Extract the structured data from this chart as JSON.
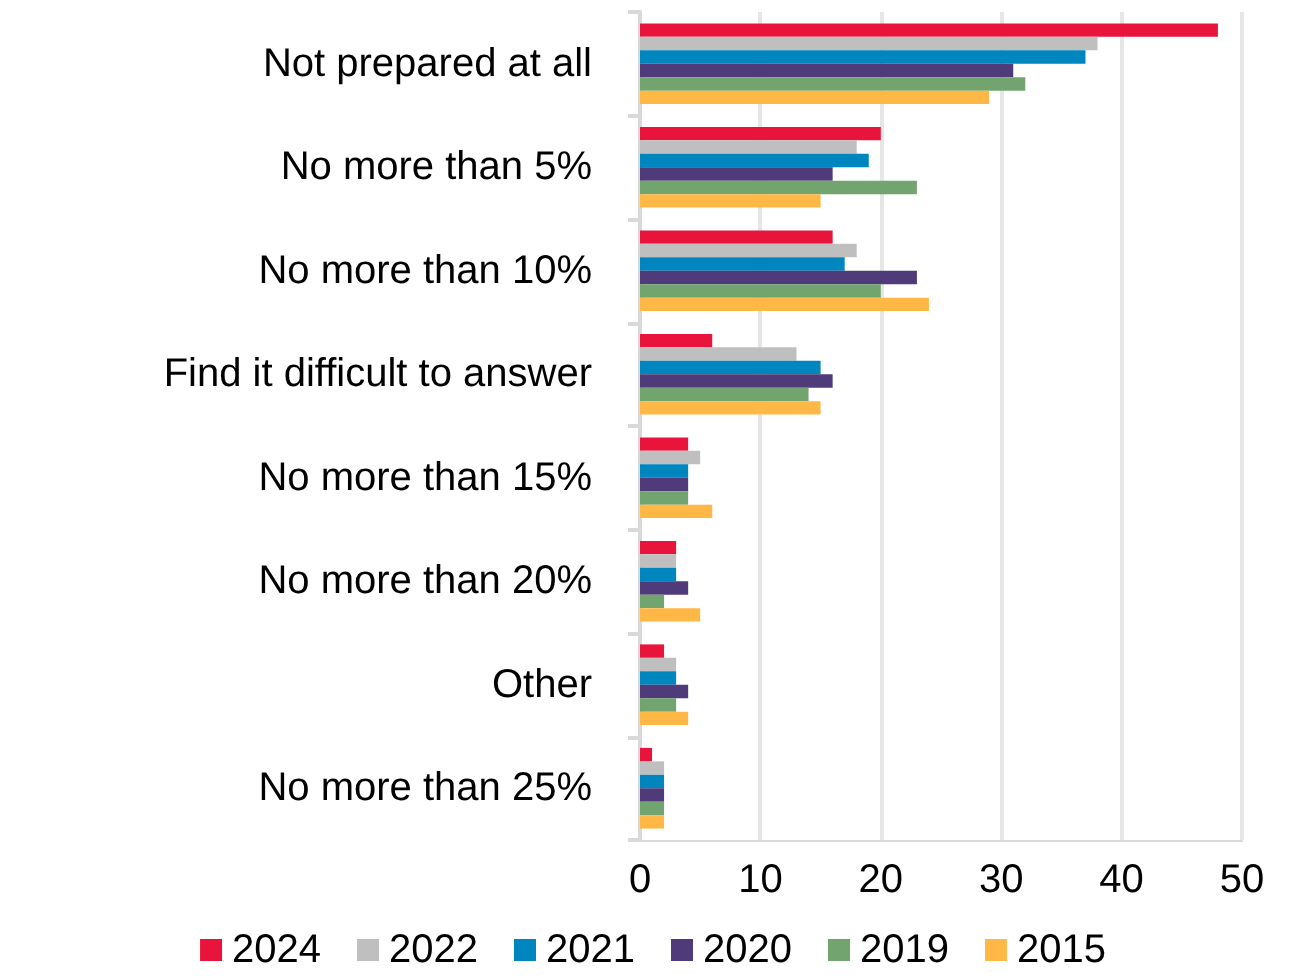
{
  "chart_data": {
    "type": "bar",
    "orientation": "horizontal",
    "categories": [
      "Not prepared at all",
      "No more than 5%",
      "No more than 10%",
      "Find it difficult to answer",
      "No more than 15%",
      "No more than 20%",
      "Other",
      "No more than 25%"
    ],
    "series": [
      {
        "name": "2024",
        "color": "#e8143c",
        "values": [
          48,
          20,
          16,
          6,
          4,
          3,
          2,
          1
        ]
      },
      {
        "name": "2022",
        "color": "#bfbfbf",
        "values": [
          38,
          18,
          18,
          13,
          5,
          3,
          3,
          2
        ]
      },
      {
        "name": "2021",
        "color": "#0086bf",
        "values": [
          37,
          19,
          17,
          15,
          4,
          3,
          3,
          2
        ]
      },
      {
        "name": "2020",
        "color": "#4f3a7a",
        "values": [
          31,
          16,
          23,
          16,
          4,
          4,
          4,
          2
        ]
      },
      {
        "name": "2019",
        "color": "#72a46f",
        "values": [
          32,
          23,
          20,
          14,
          4,
          2,
          3,
          2
        ]
      },
      {
        "name": "2015",
        "color": "#ffb845",
        "values": [
          29,
          15,
          24,
          15,
          6,
          5,
          4,
          2
        ]
      }
    ],
    "xlim": [
      0,
      50
    ],
    "xticks": [
      0,
      10,
      20,
      30,
      40,
      50
    ],
    "grid": "x",
    "legend": "bottom"
  }
}
